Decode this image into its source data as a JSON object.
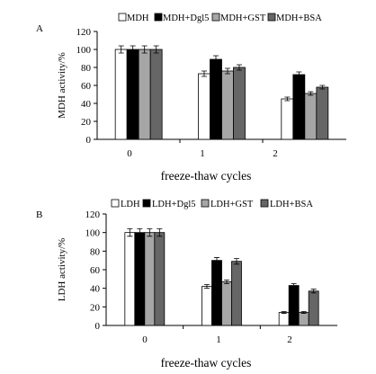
{
  "chart_data": [
    {
      "type": "bar",
      "panel_label": "A",
      "categories": [
        "0",
        "1",
        "2"
      ],
      "series": [
        {
          "name": "MDH",
          "values": [
            100,
            73,
            45
          ],
          "errors": [
            4,
            3,
            2
          ],
          "color": "#ffffff"
        },
        {
          "name": "MDH+Dgl5",
          "values": [
            100,
            89,
            72
          ],
          "errors": [
            4,
            4,
            3
          ],
          "color": "#000000"
        },
        {
          "name": "MDH+GST",
          "values": [
            100,
            76,
            51
          ],
          "errors": [
            4,
            3,
            2
          ],
          "color": "#a6a6a6"
        },
        {
          "name": "MDH+BSA",
          "values": [
            100,
            80,
            58
          ],
          "errors": [
            4,
            3,
            2
          ],
          "color": "#666666"
        }
      ],
      "xlabel": "freeze-thaw cycles",
      "ylabel": "MDH activity/%",
      "ylim": [
        0,
        120
      ],
      "yticks": [
        0,
        20,
        40,
        60,
        80,
        100,
        120
      ],
      "grid": false,
      "legend_position": "top"
    },
    {
      "type": "bar",
      "panel_label": "B",
      "categories": [
        "0",
        "1",
        "2"
      ],
      "series": [
        {
          "name": "LDH",
          "values": [
            100,
            42,
            14
          ],
          "errors": [
            4,
            2,
            1
          ],
          "color": "#ffffff"
        },
        {
          "name": "LDH+Dgl5",
          "values": [
            100,
            70,
            43
          ],
          "errors": [
            4,
            3,
            2
          ],
          "color": "#000000"
        },
        {
          "name": "LDH+GST",
          "values": [
            100,
            47,
            14
          ],
          "errors": [
            4,
            2,
            1
          ],
          "color": "#a6a6a6"
        },
        {
          "name": "LDH+BSA",
          "values": [
            100,
            69,
            37
          ],
          "errors": [
            4,
            3,
            2
          ],
          "color": "#666666"
        }
      ],
      "xlabel": "freeze-thaw cycles",
      "ylabel": "LDH activity/%",
      "ylim": [
        0,
        120
      ],
      "yticks": [
        0,
        20,
        40,
        60,
        80,
        100,
        120
      ],
      "grid": false,
      "legend_position": "top"
    }
  ]
}
